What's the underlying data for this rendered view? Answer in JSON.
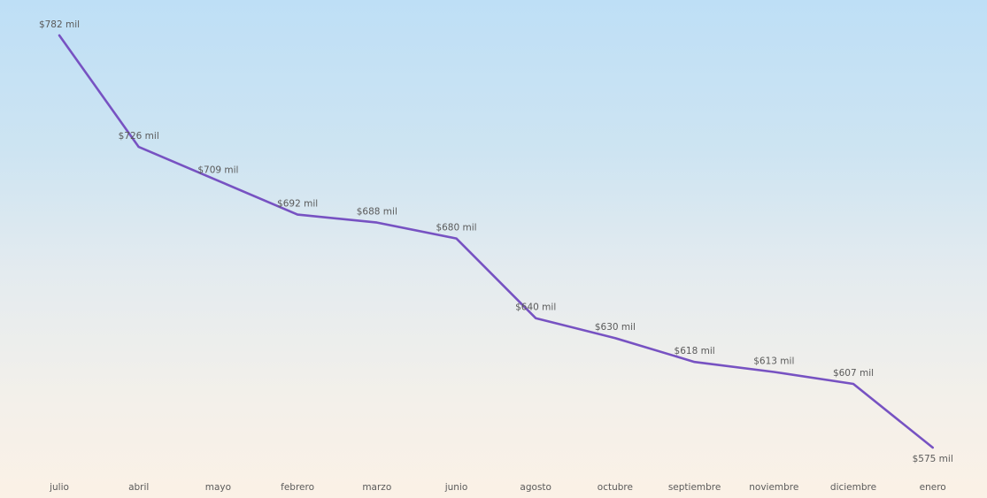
{
  "chart_data": {
    "type": "line",
    "title": "",
    "xlabel": "",
    "ylabel": "",
    "categories": [
      "julio",
      "abril",
      "mayo",
      "febrero",
      "marzo",
      "junio",
      "agosto",
      "octubre",
      "septiembre",
      "noviembre",
      "diciembre",
      "enero"
    ],
    "series": [
      {
        "values": [
          782,
          726,
          709,
          692,
          688,
          680,
          640,
          630,
          618,
          613,
          607,
          575
        ],
        "labels": [
          "$782 mil",
          "$726 mil",
          "$709 mil",
          "$692 mil",
          "$688 mil",
          "$680 mil",
          "$640 mil",
          "$630 mil",
          "$618 mil",
          "$613 mil",
          "$607 mil",
          "$575 mil"
        ],
        "color": "#7752c2"
      }
    ],
    "ylim": [
      575,
      782
    ],
    "grid": false,
    "legend": "none"
  },
  "colors": {
    "line": "#7752c2",
    "text": "#5a5a5a"
  }
}
